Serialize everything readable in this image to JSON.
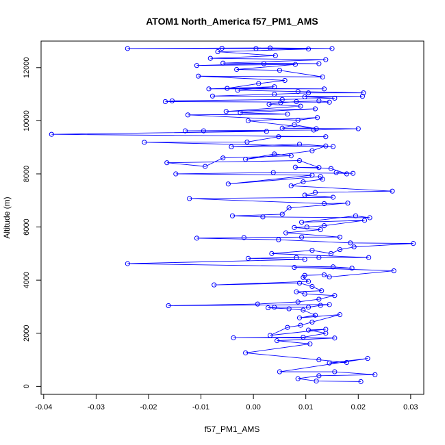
{
  "chart_data": {
    "type": "line",
    "title": "ATOM1 North_America f57_PM1_AMS",
    "xlabel": "f57_PM1_AMS",
    "ylabel": "Altitude (m)",
    "xlim": [
      -0.0405,
      0.0325
    ],
    "ylim": [
      -300,
      13000
    ],
    "x_ticks": [
      -0.04,
      -0.03,
      -0.02,
      -0.01,
      0.0,
      0.01,
      0.02,
      0.03
    ],
    "x_tick_labels": [
      "-0.04",
      "-0.03",
      "-0.02",
      "-0.01",
      "0.00",
      "0.01",
      "0.02",
      "0.03"
    ],
    "y_ticks": [
      0,
      2000,
      4000,
      6000,
      8000,
      10000,
      12000
    ],
    "y_tick_labels": [
      "0",
      "2000",
      "4000",
      "6000",
      "8000",
      "10000",
      "12000"
    ],
    "grid": false,
    "series": [
      {
        "color": "#0000ff",
        "marker": "open-circle",
        "points": [
          [
            0.0205,
            180
          ],
          [
            0.012,
            200
          ],
          [
            0.0085,
            290
          ],
          [
            0.0125,
            400
          ],
          [
            0.0232,
            440
          ],
          [
            0.0155,
            550
          ],
          [
            0.005,
            550
          ],
          [
            0.0218,
            1050
          ],
          [
            0.0145,
            880
          ],
          [
            0.0178,
            900
          ],
          [
            0.0125,
            1000
          ],
          [
            -0.0015,
            1260
          ],
          [
            0.0108,
            1600
          ],
          [
            0.0045,
            1720
          ],
          [
            0.0155,
            1820
          ],
          [
            -0.0038,
            1830
          ],
          [
            0.0095,
            1850
          ],
          [
            0.0138,
            2000
          ],
          [
            0.0105,
            2120
          ],
          [
            0.0138,
            2150
          ],
          [
            0.0032,
            1920
          ],
          [
            0.0065,
            2220
          ],
          [
            0.009,
            2300
          ],
          [
            0.0112,
            2420
          ],
          [
            0.0165,
            2700
          ],
          [
            0.0088,
            2580
          ],
          [
            0.0118,
            2680
          ],
          [
            0.0095,
            2870
          ],
          [
            0.0068,
            2920
          ],
          [
            0.0028,
            2960
          ],
          [
            0.004,
            2980
          ],
          [
            0.0105,
            2980
          ],
          [
            0.0128,
            3050
          ],
          [
            0.0145,
            3080
          ],
          [
            -0.0162,
            3040
          ],
          [
            0.0008,
            3100
          ],
          [
            0.0085,
            3180
          ],
          [
            0.0125,
            3280
          ],
          [
            0.0155,
            3420
          ],
          [
            0.0098,
            3480
          ],
          [
            0.0082,
            3560
          ],
          [
            0.013,
            3600
          ],
          [
            0.0112,
            3760
          ],
          [
            0.0088,
            3890
          ],
          [
            -0.0075,
            3820
          ],
          [
            0.0105,
            3950
          ],
          [
            0.0095,
            4100
          ],
          [
            0.0098,
            4180
          ],
          [
            0.0135,
            4200
          ],
          [
            0.0145,
            4120
          ],
          [
            0.0268,
            4350
          ],
          [
            0.0078,
            4480
          ],
          [
            0.0188,
            4450
          ],
          [
            0.0152,
            4500
          ],
          [
            -0.024,
            4620
          ],
          [
            0.0098,
            4780
          ],
          [
            -0.001,
            4820
          ],
          [
            0.0082,
            4850
          ],
          [
            0.0125,
            4850
          ],
          [
            0.022,
            4850
          ],
          [
            0.0035,
            5000
          ],
          [
            0.0112,
            5120
          ],
          [
            0.0148,
            5000
          ],
          [
            0.0165,
            5150
          ],
          [
            0.0192,
            5250
          ],
          [
            0.0305,
            5380
          ],
          [
            0.0185,
            5400
          ],
          [
            0.0048,
            5520
          ],
          [
            -0.0108,
            5580
          ],
          [
            -0.0018,
            5600
          ],
          [
            0.0092,
            5620
          ],
          [
            0.0165,
            5620
          ],
          [
            0.0062,
            5780
          ],
          [
            0.0128,
            5900
          ],
          [
            0.0078,
            5980
          ],
          [
            0.0102,
            6000
          ],
          [
            0.0135,
            6050
          ],
          [
            0.0212,
            6250
          ],
          [
            0.0092,
            6180
          ],
          [
            0.0195,
            6420
          ],
          [
            0.0222,
            6350
          ],
          [
            0.0018,
            6380
          ],
          [
            -0.004,
            6420
          ],
          [
            0.0055,
            6480
          ],
          [
            0.0068,
            6720
          ],
          [
            0.018,
            6900
          ],
          [
            0.0135,
            6880
          ],
          [
            -0.0122,
            7070
          ],
          [
            0.0152,
            7120
          ],
          [
            0.0098,
            7200
          ],
          [
            0.0118,
            7300
          ],
          [
            0.0265,
            7350
          ],
          [
            0.0072,
            7550
          ],
          [
            0.0095,
            7700
          ],
          [
            0.0132,
            7800
          ],
          [
            0.0128,
            7900
          ],
          [
            -0.0048,
            7620
          ],
          [
            0.0112,
            7950
          ],
          [
            -0.0148,
            8000
          ],
          [
            0.0038,
            8050
          ],
          [
            0.019,
            8020
          ],
          [
            0.0158,
            8050
          ],
          [
            0.0178,
            8000
          ],
          [
            0.0148,
            8200
          ],
          [
            0.008,
            8250
          ],
          [
            0.0125,
            8240
          ],
          [
            0.0088,
            8500
          ],
          [
            -0.0165,
            8420
          ],
          [
            -0.0092,
            8280
          ],
          [
            -0.0058,
            8600
          ],
          [
            0.0072,
            8680
          ],
          [
            0.004,
            8750
          ],
          [
            -0.0015,
            8550
          ],
          [
            0.0112,
            8870
          ],
          [
            0.0138,
            9050
          ],
          [
            -0.0042,
            9020
          ],
          [
            0.0088,
            9120
          ],
          [
            0.0152,
            9030
          ],
          [
            -0.0208,
            9190
          ],
          [
            -0.0012,
            9200
          ],
          [
            0.0048,
            9400
          ],
          [
            0.0138,
            9400
          ],
          [
            -0.0385,
            9490
          ],
          [
            0.0025,
            9600
          ],
          [
            -0.0095,
            9620
          ],
          [
            -0.013,
            9620
          ],
          [
            0.0115,
            9650
          ],
          [
            0.02,
            9700
          ],
          [
            0.0055,
            9720
          ],
          [
            0.0078,
            9850
          ],
          [
            0.012,
            9700
          ],
          [
            -0.001,
            10000
          ],
          [
            0.0122,
            10120
          ],
          [
            0.0085,
            10020
          ],
          [
            -0.0125,
            10220
          ],
          [
            0.0065,
            10250
          ],
          [
            -0.0025,
            10300
          ],
          [
            0.0118,
            10450
          ],
          [
            -0.0052,
            10350
          ],
          [
            0.009,
            10550
          ],
          [
            0.003,
            10620
          ],
          [
            0.0052,
            10680
          ],
          [
            0.0082,
            10720
          ],
          [
            0.0125,
            10750
          ],
          [
            0.0145,
            10700
          ],
          [
            -0.0168,
            10720
          ],
          [
            -0.0155,
            10750
          ],
          [
            0.0055,
            10800
          ],
          [
            0.0155,
            10850
          ],
          [
            0.0098,
            10900
          ],
          [
            0.0208,
            10920
          ],
          [
            -0.0078,
            10930
          ],
          [
            0.004,
            11000
          ],
          [
            0.0105,
            11050
          ],
          [
            0.021,
            11050
          ],
          [
            0.0085,
            11100
          ],
          [
            -0.003,
            11150
          ],
          [
            0.004,
            11280
          ],
          [
            -0.0085,
            11200
          ],
          [
            0.0135,
            11200
          ],
          [
            -0.005,
            11220
          ],
          [
            0.001,
            11400
          ],
          [
            0.006,
            11520
          ],
          [
            -0.0105,
            11680
          ],
          [
            0.0132,
            11650
          ],
          [
            0.005,
            11900
          ],
          [
            -0.0032,
            11930
          ],
          [
            0.008,
            12120
          ],
          [
            -0.0108,
            12080
          ],
          [
            0.002,
            12150
          ],
          [
            0.0125,
            12150
          ],
          [
            -0.0058,
            12170
          ],
          [
            0.0138,
            12300
          ],
          [
            -0.0082,
            12350
          ],
          [
            0.0042,
            12450
          ],
          [
            -0.0068,
            12600
          ],
          [
            0.0105,
            12700
          ],
          [
            0.0005,
            12720
          ],
          [
            -0.024,
            12720
          ],
          [
            0.0032,
            12740
          ],
          [
            0.015,
            12720
          ],
          [
            -0.006,
            12730
          ]
        ]
      }
    ]
  }
}
